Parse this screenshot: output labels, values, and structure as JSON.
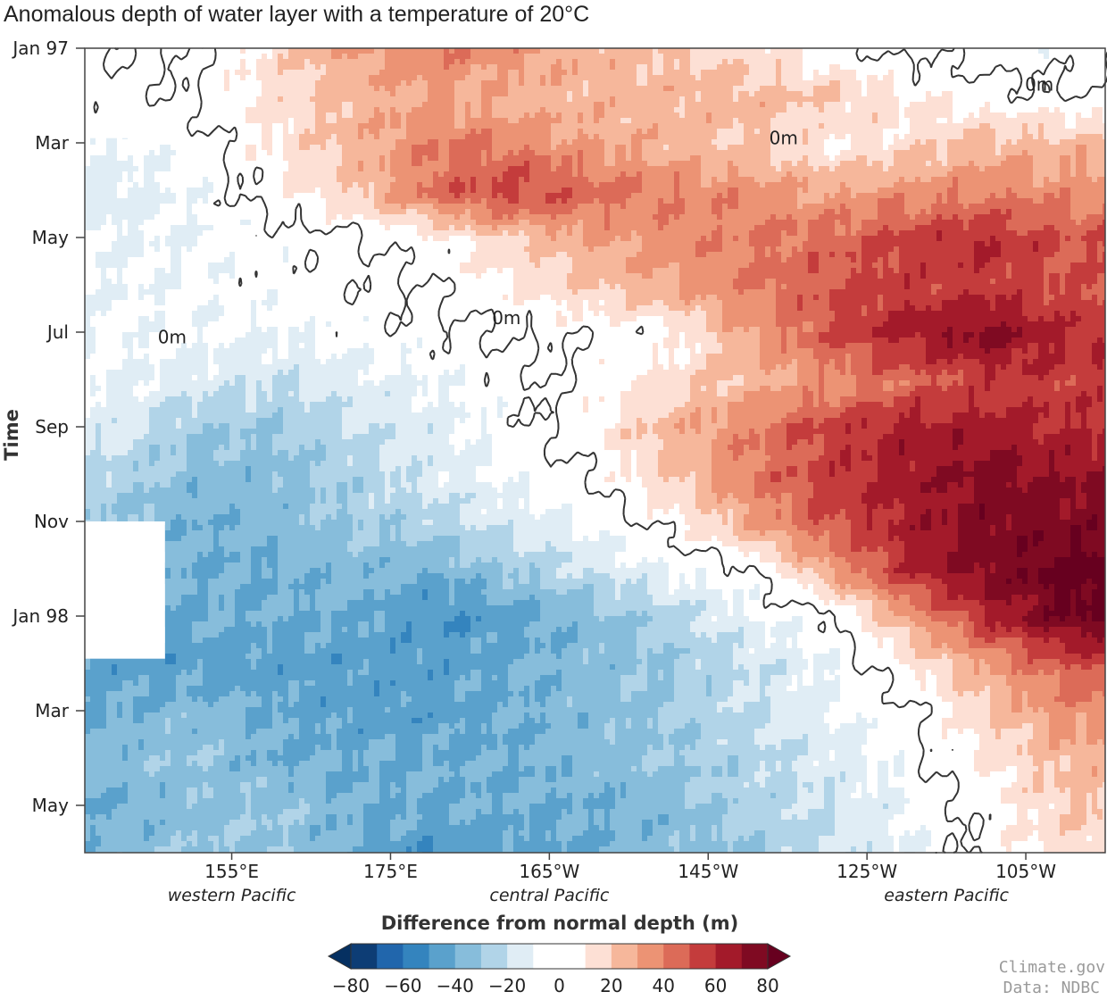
{
  "chart_data": {
    "type": "heatmap",
    "title": "Anomalous depth of water layer with a temperature of 20°C",
    "ylabel": "Time",
    "xlabel": "",
    "x_range_deg_east": [
      136.5,
      265
    ],
    "y_range": [
      "1997-01-01",
      "1998-06-01"
    ],
    "y_direction": "time increases downward",
    "xticks": [
      {
        "lon": 155,
        "label": "155°E"
      },
      {
        "lon": 175,
        "label": "175°E"
      },
      {
        "lon": 195,
        "label": "165°W"
      },
      {
        "lon": 215,
        "label": "145°W"
      },
      {
        "lon": 235,
        "label": "125°W"
      },
      {
        "lon": 255,
        "label": "105°W"
      }
    ],
    "region_labels": [
      {
        "lon": 155,
        "label": "western Pacific"
      },
      {
        "lon": 195,
        "label": "central Pacific"
      },
      {
        "lon": 245,
        "label": "eastern Pacific"
      }
    ],
    "yticks": [
      {
        "date": "1997-01-01",
        "label": "Jan 97"
      },
      {
        "date": "1997-03-01",
        "label": "Mar"
      },
      {
        "date": "1997-05-01",
        "label": "May"
      },
      {
        "date": "1997-07-01",
        "label": "Jul"
      },
      {
        "date": "1997-09-01",
        "label": "Sep"
      },
      {
        "date": "1997-11-01",
        "label": "Nov"
      },
      {
        "date": "1998-01-01",
        "label": "Jan 98"
      },
      {
        "date": "1998-03-01",
        "label": "Mar"
      },
      {
        "date": "1998-05-01",
        "label": "May"
      }
    ],
    "grid": {
      "lons": [
        140,
        150,
        160,
        170,
        180,
        190,
        200,
        210,
        220,
        230,
        240,
        250,
        260
      ],
      "times": [
        "1997-01",
        "1997-02",
        "1997-03",
        "1997-04",
        "1997-05",
        "1997-06",
        "1997-07",
        "1997-08",
        "1997-09",
        "1997-10",
        "1997-11",
        "1997-12",
        "1998-01",
        "1998-02",
        "1998-03",
        "1998-04",
        "1998-05",
        "1998-06"
      ],
      "units": "m",
      "values": [
        [
          0,
          -2,
          15,
          30,
          40,
          35,
          25,
          20,
          15,
          5,
          -3,
          -5,
          -5
        ],
        [
          -5,
          0,
          15,
          25,
          30,
          25,
          25,
          25,
          25,
          20,
          10,
          5,
          0
        ],
        [
          -10,
          -5,
          10,
          25,
          40,
          40,
          30,
          25,
          20,
          10,
          15,
          25,
          25
        ],
        [
          -15,
          -8,
          5,
          20,
          45,
          55,
          45,
          40,
          35,
          30,
          35,
          40,
          35
        ],
        [
          -10,
          -10,
          -5,
          -2,
          5,
          20,
          30,
          35,
          40,
          45,
          55,
          60,
          50
        ],
        [
          -10,
          -8,
          -5,
          -3,
          -1,
          10,
          20,
          30,
          40,
          50,
          55,
          55,
          50
        ],
        [
          -8,
          -8,
          -10,
          -5,
          -2,
          0,
          2,
          5,
          30,
          50,
          65,
          75,
          60
        ],
        [
          -10,
          -15,
          -20,
          -15,
          -10,
          -3,
          3,
          15,
          25,
          35,
          45,
          55,
          55
        ],
        [
          -15,
          -30,
          -30,
          -20,
          -15,
          -5,
          8,
          25,
          40,
          55,
          65,
          65,
          60
        ],
        [
          -25,
          -35,
          -35,
          -25,
          -15,
          -8,
          0,
          20,
          40,
          55,
          65,
          75,
          70
        ],
        [
          -30,
          -40,
          -35,
          -30,
          -25,
          -15,
          -8,
          5,
          30,
          50,
          65,
          75,
          75
        ],
        [
          -35,
          -40,
          -40,
          -35,
          -40,
          -30,
          -20,
          -10,
          -3,
          30,
          60,
          75,
          85
        ],
        [
          -45,
          -40,
          -40,
          -40,
          -50,
          -45,
          -35,
          -25,
          -10,
          -3,
          30,
          60,
          80
        ],
        [
          -45,
          -45,
          -45,
          -45,
          -45,
          -40,
          -35,
          -30,
          -20,
          -10,
          10,
          30,
          50
        ],
        [
          -40,
          -35,
          -40,
          -45,
          -45,
          -40,
          -35,
          -30,
          -20,
          -12,
          -3,
          20,
          35
        ],
        [
          -35,
          -30,
          -40,
          -40,
          -40,
          -40,
          -35,
          -30,
          -25,
          -15,
          -5,
          12,
          25
        ],
        [
          -40,
          -35,
          -30,
          -40,
          -40,
          -40,
          -40,
          -35,
          -25,
          -20,
          -10,
          5,
          20
        ],
        [
          -35,
          -30,
          -30,
          -40,
          -50,
          -45,
          -40,
          -35,
          -30,
          -20,
          -10,
          3,
          15
        ]
      ]
    },
    "missing_regions": [
      {
        "lon": [
          136.5,
          146.6
        ],
        "time": [
          "1997-01-01",
          "1997-02-28"
        ]
      },
      {
        "lon": [
          136.5,
          146.6
        ],
        "time": [
          "1997-10-31",
          "1998-01-28"
        ]
      }
    ],
    "contour": {
      "level": 0,
      "color": "#333333"
    },
    "contour_labels": [
      {
        "lon": 256.7,
        "date": "1997-01-24",
        "label": "0m"
      },
      {
        "lon": 224.5,
        "date": "1997-02-28",
        "label": "0m"
      },
      {
        "lon": 189.6,
        "date": "1997-06-22",
        "label": "0m"
      },
      {
        "lon": 147.5,
        "date": "1997-07-04",
        "label": "0m"
      }
    ],
    "colorbar": {
      "title": "Difference from normal depth (m)",
      "min": -80,
      "max": 80,
      "step": 10,
      "extend": "both",
      "under_color": "#053061",
      "over_color": "#67001f",
      "colors": [
        "#0d3d75",
        "#2166ac",
        "#3484be",
        "#5aa1cc",
        "#87bddb",
        "#b1d4e8",
        "#e0edf5",
        "#ffffff",
        "#ffffff",
        "#fde0d5",
        "#f6b79b",
        "#ec9374",
        "#dc6b58",
        "#c43c3c",
        "#a31a2a",
        "#7f0a22"
      ],
      "tick_values": [
        -80,
        -60,
        -40,
        -20,
        0,
        20,
        40,
        60,
        80
      ],
      "tick_labels": [
        "−80",
        "−60",
        "−40",
        "−20",
        "0",
        "20",
        "40",
        "60",
        "80"
      ]
    },
    "credits": [
      "Climate.gov",
      "Data: NDBC"
    ]
  }
}
